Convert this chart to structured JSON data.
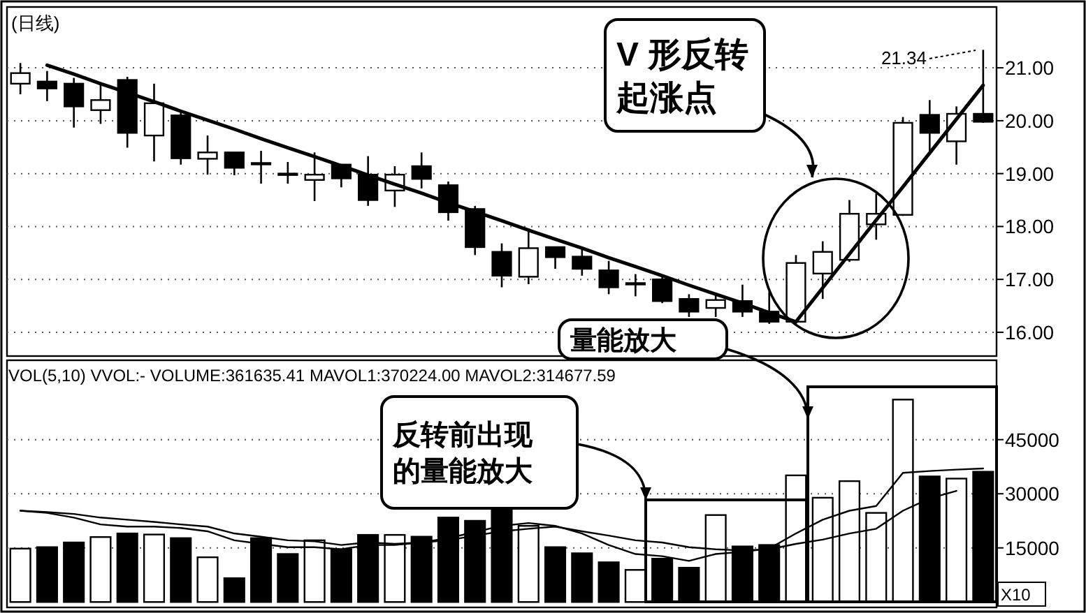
{
  "chart_data": [
    {
      "type": "candlestick",
      "title": "(日线)",
      "categories": [
        null,
        null,
        null,
        null,
        null,
        null,
        null,
        null,
        null,
        null,
        null,
        null,
        null,
        null,
        null,
        null,
        null,
        null,
        null,
        null,
        null,
        null,
        null,
        null,
        null,
        null,
        null,
        null,
        null,
        null,
        null,
        null,
        null,
        null,
        null,
        null,
        null
      ],
      "ohlc": [
        [
          20.7,
          21.09,
          20.5,
          20.9
        ],
        [
          20.74,
          20.94,
          20.37,
          20.61
        ],
        [
          20.7,
          20.81,
          19.87,
          20.27
        ],
        [
          20.2,
          20.72,
          19.94,
          20.39
        ],
        [
          20.77,
          20.83,
          19.49,
          19.77
        ],
        [
          19.72,
          20.7,
          19.23,
          20.33
        ],
        [
          20.1,
          20.18,
          19.17,
          19.29
        ],
        [
          19.28,
          19.72,
          18.98,
          19.4
        ],
        [
          19.4,
          19.4,
          18.97,
          19.11
        ],
        [
          19.2,
          19.43,
          18.81,
          19.19
        ],
        [
          19.0,
          19.22,
          18.81,
          19.0
        ],
        [
          18.88,
          19.4,
          18.48,
          18.98
        ],
        [
          19.17,
          19.17,
          18.74,
          18.91
        ],
        [
          18.98,
          19.33,
          18.39,
          18.5
        ],
        [
          18.68,
          19.14,
          18.37,
          18.98
        ],
        [
          19.14,
          19.4,
          18.72,
          18.9
        ],
        [
          18.78,
          18.85,
          18.11,
          18.27
        ],
        [
          18.33,
          18.39,
          17.46,
          17.61
        ],
        [
          17.52,
          17.68,
          16.85,
          17.07
        ],
        [
          17.05,
          17.96,
          16.91,
          17.59
        ],
        [
          17.61,
          17.61,
          17.2,
          17.42
        ],
        [
          17.43,
          17.59,
          17.07,
          17.2
        ],
        [
          17.17,
          17.35,
          16.72,
          16.85
        ],
        [
          16.93,
          17.1,
          16.68,
          16.92
        ],
        [
          17.0,
          17.05,
          16.55,
          16.59
        ],
        [
          16.63,
          16.72,
          16.29,
          16.39
        ],
        [
          16.46,
          16.72,
          16.29,
          16.61
        ],
        [
          16.59,
          16.9,
          16.29,
          16.39
        ],
        [
          16.39,
          16.77,
          16.16,
          16.2
        ],
        [
          16.2,
          17.46,
          16.16,
          17.31
        ],
        [
          17.11,
          17.72,
          16.63,
          17.52
        ],
        [
          17.37,
          18.5,
          17.33,
          18.24
        ],
        [
          18.04,
          18.62,
          17.75,
          18.24
        ],
        [
          18.22,
          20.07,
          18.2,
          19.96
        ],
        [
          20.11,
          20.39,
          19.43,
          19.77
        ],
        [
          19.61,
          20.27,
          19.17,
          20.13
        ],
        [
          20.13,
          21.34,
          19.96,
          19.98
        ]
      ],
      "series": [
        {
          "type": "line",
          "values": [
            null,
            21.05,
            20.88,
            20.7,
            20.53,
            20.36,
            20.18,
            20.01,
            19.84,
            19.66,
            19.49,
            19.32,
            19.15,
            18.97,
            18.8,
            18.63,
            18.45,
            18.28,
            18.11,
            17.93,
            17.76,
            17.59,
            17.41,
            17.24,
            17.07,
            16.89,
            16.72,
            16.55,
            16.37,
            16.2,
            null,
            null,
            null,
            null,
            null,
            null,
            null
          ],
          "color": "#000000"
        },
        {
          "type": "line",
          "values": [
            null,
            null,
            null,
            null,
            null,
            null,
            null,
            null,
            null,
            null,
            null,
            null,
            null,
            null,
            null,
            null,
            null,
            null,
            null,
            null,
            null,
            null,
            null,
            null,
            null,
            null,
            null,
            null,
            null,
            16.2,
            16.84,
            17.48,
            18.12,
            18.75,
            19.39,
            20.03,
            20.67
          ],
          "color": "#000000"
        }
      ],
      "ylim": [
        15.55,
        22.15
      ],
      "yticks": [
        {
          "value": 16,
          "label": "16.00"
        },
        {
          "value": 17,
          "label": "17.00"
        },
        {
          "value": 18,
          "label": "18.00"
        },
        {
          "value": 19,
          "label": "19.00"
        },
        {
          "value": 20,
          "label": "20.00"
        },
        {
          "value": 21,
          "label": "21.00"
        }
      ],
      "grid": "y",
      "annotations": [
        "21.34",
        "V 形反转起涨点"
      ]
    },
    {
      "type": "bar",
      "categories": [
        null,
        null,
        null,
        null,
        null,
        null,
        null,
        null,
        null,
        null,
        null,
        null,
        null,
        null,
        null,
        null,
        null,
        null,
        null,
        null,
        null,
        null,
        null,
        null,
        null,
        null,
        null,
        null,
        null,
        null,
        null,
        null,
        null,
        null,
        null,
        null,
        null
      ],
      "series": [
        {
          "type": "bar",
          "values": [
            14800,
            15200,
            16500,
            18000,
            19000,
            18700,
            17700,
            12400,
            6600,
            17700,
            13300,
            17100,
            14600,
            18600,
            18600,
            18100,
            23400,
            22500,
            25700,
            21100,
            15200,
            13500,
            11000,
            8900,
            12000,
            9500,
            24100,
            15400,
            15800,
            35100,
            28900,
            33500,
            24700,
            56100,
            34800,
            34200,
            36100
          ],
          "colors": [
            "#ffffff",
            "#000000",
            "#000000",
            "#ffffff",
            "#000000",
            "#ffffff",
            "#000000",
            "#ffffff",
            "#000000",
            "#000000",
            "#000000",
            "#ffffff",
            "#000000",
            "#000000",
            "#ffffff",
            "#000000",
            "#000000",
            "#000000",
            "#000000",
            "#ffffff",
            "#000000",
            "#000000",
            "#000000",
            "#ffffff",
            "#000000",
            "#000000",
            "#ffffff",
            "#000000",
            "#000000",
            "#ffffff",
            "#ffffff",
            "#ffffff",
            "#ffffff",
            "#ffffff",
            "#000000",
            "#ffffff",
            "#000000"
          ]
        },
        {
          "type": "line",
          "color": "#000000",
          "values": [
            25300,
            24700,
            23400,
            21500,
            20900,
            20900,
            20500,
            19600,
            17100,
            16100,
            15200,
            15200,
            14600,
            15800,
            15800,
            16500,
            17700,
            19400,
            21100,
            21900,
            21100,
            19000,
            15800,
            13300,
            12700,
            11400,
            13300,
            13900,
            14800,
            19000,
            22800,
            25300,
            26600,
            35800,
            36300,
            36700,
            37000
          ]
        },
        {
          "type": "line",
          "color": "#000000",
          "values": [
            25300,
            24900,
            24400,
            23400,
            22800,
            22200,
            21500,
            20900,
            19000,
            18100,
            17100,
            16800,
            15800,
            16500,
            16100,
            16500,
            17100,
            18400,
            19600,
            20300,
            20900,
            19600,
            18400,
            17100,
            16500,
            15200,
            14600,
            14300,
            14600,
            16100,
            17300,
            19000,
            20300,
            25300,
            28700,
            30800,
            null
          ]
        }
      ],
      "ylim": [
        -1500,
        67000
      ],
      "yticks": [
        15000,
        30000,
        45000
      ],
      "grid": "y",
      "annotations": [
        "VOL(5,10) VVOL:- VOLUME:361635.41 MAVOL1:370224.00 MAVOL2:314677.59",
        "X10",
        "反转前出现的量能放大",
        "量能放大"
      ]
    }
  ]
}
